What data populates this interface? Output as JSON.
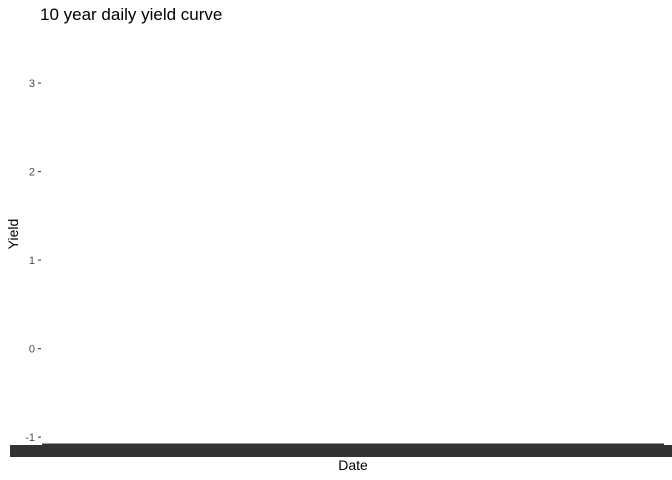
{
  "chart_data": {
    "type": "line",
    "title": "10 year daily yield curve",
    "xlabel": "Date",
    "ylabel": "Yield",
    "ylim": [
      -1.1,
      3.6
    ],
    "y_ticks": [
      -1,
      0,
      1,
      2,
      3
    ],
    "grid": false,
    "legend": "none",
    "x_tick_labels_overlapping": true,
    "series": [
      {
        "values": [
          -1.1,
          -1.1
        ]
      }
    ],
    "colors": {
      "line": "#333333",
      "text": "#000000",
      "tick_text": "#4d4d4d"
    }
  }
}
